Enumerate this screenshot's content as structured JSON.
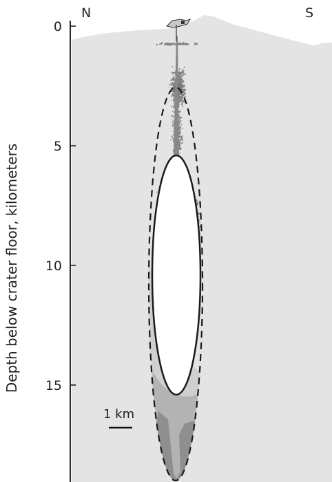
{
  "compass": {
    "north": "N",
    "south": "S"
  },
  "axis": {
    "title": "Depth below crater floor, kilometers",
    "ticks": [
      "0",
      "5",
      "10",
      "15"
    ]
  },
  "scale_bar": {
    "label": "1 km"
  },
  "colors": {
    "background_rock": "#e4e4e4",
    "earthquake_dots": "#7f7f7f",
    "magma_body_fill": "#ffffff",
    "lower_zone_light": "#cfcfcf",
    "lower_zone_mid": "#b3b3b3",
    "lower_zone_dark": "#8f8f8f",
    "outline": "#1a1a1a"
  }
}
